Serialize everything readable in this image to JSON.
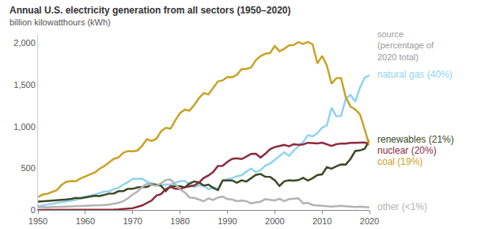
{
  "chart_data": {
    "type": "line",
    "title": "Annual U.S. electricity generation from all sectors (1950–2020)",
    "subtitle": "billion kilowatthours (kWh)",
    "annotations": [
      "source (percentage of 2020 total)"
    ],
    "x": [
      1950,
      1951,
      1952,
      1953,
      1954,
      1955,
      1956,
      1957,
      1958,
      1959,
      1960,
      1961,
      1962,
      1963,
      1964,
      1965,
      1966,
      1967,
      1968,
      1969,
      1970,
      1971,
      1972,
      1973,
      1974,
      1975,
      1976,
      1977,
      1978,
      1979,
      1980,
      1981,
      1982,
      1983,
      1984,
      1985,
      1986,
      1987,
      1988,
      1989,
      1990,
      1991,
      1992,
      1993,
      1994,
      1995,
      1996,
      1997,
      1998,
      1999,
      2000,
      2001,
      2002,
      2003,
      2004,
      2005,
      2006,
      2007,
      2008,
      2009,
      2010,
      2011,
      2012,
      2013,
      2014,
      2015,
      2016,
      2017,
      2018,
      2019,
      2020
    ],
    "xlim": [
      1950,
      2020
    ],
    "xticks": [
      1950,
      1960,
      1970,
      1980,
      1990,
      2000,
      2010,
      2020
    ],
    "ylim": [
      0,
      2100
    ],
    "yticks": [
      0,
      500,
      {
        "value": 1000,
        "label": "1,000"
      },
      {
        "value": 1500,
        "label": "1,500"
      },
      {
        "value": 2000,
        "label": "2,000"
      }
    ],
    "grid": false,
    "series": [
      {
        "name": "natural gas (40%)",
        "color": "#8fd3ef",
        "values": [
          45,
          57,
          67,
          75,
          85,
          95,
          104,
          114,
          120,
          147,
          158,
          169,
          184,
          202,
          220,
          222,
          251,
          265,
          304,
          333,
          373,
          374,
          376,
          341,
          320,
          300,
          295,
          306,
          305,
          329,
          346,
          346,
          305,
          274,
          297,
          292,
          249,
          273,
          253,
          352,
          372,
          381,
          404,
          415,
          460,
          496,
          455,
          479,
          531,
          556,
          601,
          639,
          691,
          650,
          711,
          761,
          816,
          897,
          883,
          921,
          988,
          1014,
          1226,
          1124,
          1127,
          1335,
          1379,
          1297,
          1469,
          1586,
          1617
        ]
      },
      {
        "name": "renewables (21%)",
        "color": "#3b4a25",
        "values": [
          100,
          104,
          110,
          109,
          112,
          117,
          125,
          133,
          144,
          141,
          149,
          155,
          170,
          167,
          181,
          196,
          198,
          225,
          226,
          254,
          253,
          270,
          276,
          276,
          306,
          304,
          289,
          226,
          286,
          284,
          285,
          272,
          318,
          342,
          332,
          293,
          304,
          265,
          238,
          355,
          357,
          355,
          326,
          356,
          341,
          384,
          421,
          431,
          399,
          398,
          356,
          288,
          344,
          356,
          351,
          358,
          386,
          353,
          381,
          418,
          427,
          513,
          495,
          523,
          546,
          545,
          613,
          708,
          714,
          734,
          834
        ]
      },
      {
        "name": "nuclear (20%)",
        "color": "#8c2b3c",
        "values": [
          0,
          0,
          0,
          0,
          0,
          0,
          0,
          0,
          0.2,
          0.2,
          0.5,
          1.7,
          2.3,
          3.2,
          3.3,
          3.7,
          5.5,
          7.7,
          12.5,
          13.9,
          21.8,
          38.1,
          54.1,
          83.5,
          114,
          173,
          191,
          251,
          276,
          255,
          251,
          273,
          283,
          294,
          328,
          384,
          414,
          455,
          527,
          529,
          577,
          613,
          619,
          610,
          640,
          673,
          675,
          629,
          674,
          728,
          754,
          769,
          780,
          764,
          789,
          782,
          787,
          806,
          806,
          799,
          807,
          790,
          769,
          789,
          797,
          797,
          806,
          805,
          807,
          809,
          790
        ]
      },
      {
        "name": "coal (19%)",
        "color": "#c9a227",
        "values": [
          155,
          185,
          195,
          219,
          239,
          301,
          338,
          346,
          344,
          378,
          403,
          422,
          450,
          494,
          526,
          571,
          613,
          630,
          685,
          706,
          704,
          713,
          771,
          848,
          828,
          853,
          944,
          985,
          976,
          1075,
          1162,
          1203,
          1192,
          1259,
          1342,
          1402,
          1386,
          1464,
          1541,
          1554,
          1594,
          1591,
          1621,
          1690,
          1691,
          1709,
          1796,
          1845,
          1874,
          1881,
          1966,
          1904,
          1933,
          1974,
          1978,
          2013,
          1991,
          2016,
          1986,
          1756,
          1847,
          1733,
          1514,
          1581,
          1582,
          1352,
          1239,
          1206,
          1146,
          965,
          774
        ]
      },
      {
        "name": "other (<1%)",
        "color": "#b3b3b3",
        "values": [
          35,
          30,
          32,
          36,
          34,
          38,
          40,
          42,
          42,
          48,
          50,
          50,
          50,
          55,
          60,
          65,
          75,
          85,
          105,
          140,
          185,
          220,
          275,
          315,
          300,
          290,
          320,
          360,
          365,
          305,
          250,
          210,
          150,
          145,
          125,
          105,
          140,
          120,
          150,
          160,
          130,
          125,
          105,
          115,
          105,
          80,
          90,
          100,
          130,
          125,
          115,
          135,
          105,
          130,
          135,
          140,
          80,
          85,
          60,
          55,
          55,
          45,
          40,
          45,
          50,
          45,
          40,
          35,
          40,
          35,
          30
        ]
      }
    ]
  }
}
